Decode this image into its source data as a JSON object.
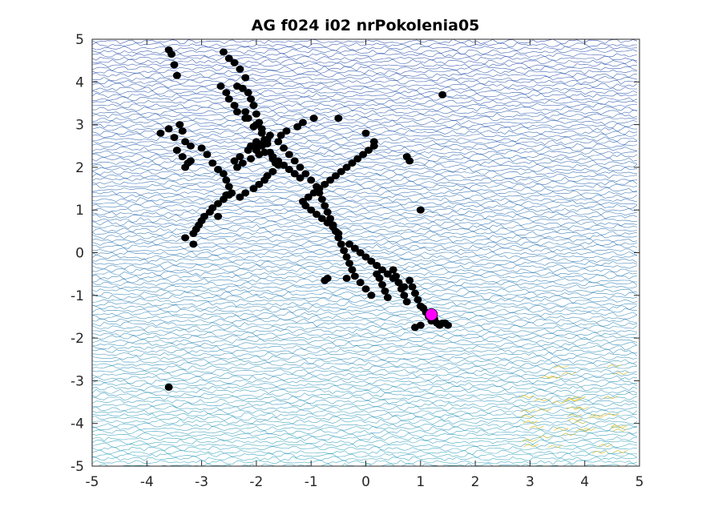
{
  "chart_data": {
    "type": "scatter",
    "title": "AG f024 i02 nrPokolenia05",
    "xlabel": "",
    "ylabel": "",
    "xlim": [
      -5,
      5
    ],
    "ylim": [
      -5,
      5
    ],
    "xticks": [
      "-5",
      "-4",
      "-3",
      "-2",
      "-1",
      "0",
      "1",
      "2",
      "3",
      "4",
      "5"
    ],
    "yticks": [
      "-5",
      "-4",
      "-3",
      "-2",
      "-1",
      "0",
      "1",
      "2",
      "3",
      "4",
      "5"
    ],
    "grid": false,
    "background": "contour map of the objective function",
    "colors": {
      "population": "#000000",
      "best": "#ff00ff",
      "contour_low": "#1c3aa6",
      "contour_mid": "#2aa0b8",
      "contour_high": "#f2c41f",
      "axes": "#262626"
    },
    "series": [
      {
        "marker": "black-dot",
        "x": [
          -3.6,
          -3.55,
          -3.5,
          -3.45,
          -3.6,
          -3.4,
          -3.35,
          -3.5,
          -3.45,
          -3.3,
          -3.2,
          -3.35,
          -3.25,
          -3.3,
          -3.2,
          -3.0,
          -2.9,
          -2.8,
          -2.7,
          -2.6,
          -2.55,
          -2.5,
          -2.45,
          -2.6,
          -2.5,
          -2.4,
          -2.3,
          -2.2,
          -2.35,
          -2.25,
          -2.15,
          -2.1,
          -2.05,
          -2.2,
          -2.15,
          -2.0,
          -1.95,
          -2.05,
          -1.9,
          -1.85,
          -1.8,
          -2.0,
          -1.95,
          -2.1,
          -2.25,
          -2.35,
          -2.4,
          -2.3,
          -2.15,
          -2.1,
          -2.0,
          -1.9,
          -1.75,
          -1.7,
          -1.65,
          -1.6,
          -1.7,
          -1.8,
          -1.85,
          -1.95,
          -2.05,
          -2.2,
          -2.3,
          -2.5,
          -2.6,
          -2.7,
          -2.8,
          -2.85,
          -2.95,
          -3.0,
          -3.05,
          -3.1,
          -3.15,
          -3.3,
          -3.75,
          -2.65,
          -2.55,
          -2.5,
          -2.4,
          -2.35,
          -2.2,
          -2.0,
          -1.9,
          -1.75,
          -1.6,
          -1.5,
          -1.4,
          -1.3,
          -1.2,
          -1.1,
          -1.0,
          -0.9,
          -0.85,
          -0.8,
          -0.75,
          -0.7,
          -0.65,
          -0.6,
          -0.55,
          -0.5,
          -0.45,
          -0.4,
          -0.35,
          -0.3,
          -0.25,
          -0.2,
          -0.1,
          0.0,
          0.1,
          0.2,
          0.25,
          0.3,
          0.35,
          0.4,
          0.5,
          0.55,
          0.6,
          0.65,
          0.7,
          0.75,
          0.8,
          0.85,
          0.9,
          0.95,
          1.0,
          1.05,
          1.1,
          1.15,
          1.2,
          1.25,
          1.3,
          1.35,
          1.4,
          1.5,
          -0.5,
          -0.3,
          -0.2,
          -0.1,
          0.0,
          0.1,
          0.2,
          0.3,
          0.4,
          0.5,
          0.6,
          0.7,
          -0.6,
          -0.7,
          -0.8,
          -0.9,
          -1.0,
          -1.1,
          -1.15,
          -1.05,
          -0.95,
          -0.85,
          -0.75,
          -0.65,
          -0.55,
          -0.45,
          -0.35,
          -0.25,
          -0.15,
          -0.05,
          0.05,
          0.15,
          -1.2,
          -1.3,
          -1.4,
          -1.5,
          -1.6,
          -1.7,
          -1.85,
          -2.0,
          -1.95,
          -1.8,
          -1.55,
          -1.45,
          -1.25,
          -1.15,
          -0.95,
          -0.5,
          0.0,
          0.15,
          0.75,
          0.8,
          1.0,
          1.4,
          1.45,
          1.0,
          0.9,
          -0.7,
          -0.75,
          -0.35,
          -2.55,
          -2.7,
          -3.15,
          -3.6
        ],
        "y": [
          4.75,
          4.65,
          4.4,
          4.15,
          2.9,
          3.0,
          2.85,
          2.7,
          2.4,
          2.6,
          2.5,
          2.25,
          2.1,
          2.0,
          2.15,
          2.45,
          2.3,
          2.1,
          1.95,
          1.85,
          1.7,
          1.55,
          1.4,
          4.7,
          4.55,
          4.45,
          4.3,
          4.1,
          3.9,
          3.85,
          3.75,
          3.6,
          3.45,
          3.3,
          3.15,
          3.25,
          3.05,
          2.95,
          2.8,
          2.65,
          2.55,
          2.4,
          2.3,
          2.2,
          2.1,
          2.0,
          2.15,
          2.25,
          2.4,
          2.5,
          2.6,
          2.5,
          2.35,
          2.2,
          2.1,
          2.05,
          1.9,
          1.8,
          1.7,
          1.6,
          1.5,
          1.4,
          1.3,
          1.35,
          1.25,
          1.15,
          1.05,
          0.95,
          0.85,
          0.75,
          0.65,
          0.55,
          0.45,
          0.35,
          2.8,
          3.9,
          3.75,
          3.6,
          3.45,
          3.3,
          3.15,
          3.0,
          2.9,
          2.75,
          2.6,
          2.45,
          2.3,
          2.15,
          2.0,
          1.85,
          1.7,
          1.55,
          1.4,
          1.25,
          1.1,
          0.95,
          0.8,
          0.65,
          0.5,
          0.35,
          0.2,
          0.05,
          -0.1,
          -0.25,
          -0.4,
          -0.55,
          -0.7,
          -0.85,
          -1.0,
          -0.5,
          -0.6,
          -0.75,
          -0.9,
          -1.05,
          -0.4,
          -0.55,
          -0.7,
          -0.85,
          -1.0,
          -1.15,
          -0.65,
          -0.8,
          -0.95,
          -1.1,
          -1.25,
          -1.3,
          -1.4,
          -1.5,
          -1.6,
          -1.55,
          -1.65,
          -1.7,
          -1.65,
          -1.7,
          0.45,
          0.2,
          0.1,
          0.0,
          -0.1,
          -0.2,
          -0.3,
          -0.4,
          -0.5,
          -0.6,
          -0.7,
          -0.8,
          0.6,
          0.7,
          0.8,
          0.9,
          1.0,
          1.1,
          1.2,
          1.3,
          1.4,
          1.5,
          1.6,
          1.7,
          1.8,
          1.9,
          2.0,
          2.1,
          2.2,
          2.3,
          2.4,
          2.5,
          1.75,
          1.85,
          1.95,
          2.05,
          2.15,
          2.25,
          2.35,
          2.45,
          2.55,
          2.65,
          2.75,
          2.85,
          2.95,
          3.05,
          3.15,
          3.15,
          2.8,
          2.6,
          2.25,
          2.15,
          1.0,
          3.7,
          -1.65,
          -1.7,
          -1.75,
          -0.6,
          -0.65,
          -0.6,
          1.35,
          0.85,
          0.2,
          -3.15
        ]
      },
      {
        "marker": "best-point",
        "x": [
          1.2
        ],
        "y": [
          -1.45
        ]
      }
    ]
  }
}
